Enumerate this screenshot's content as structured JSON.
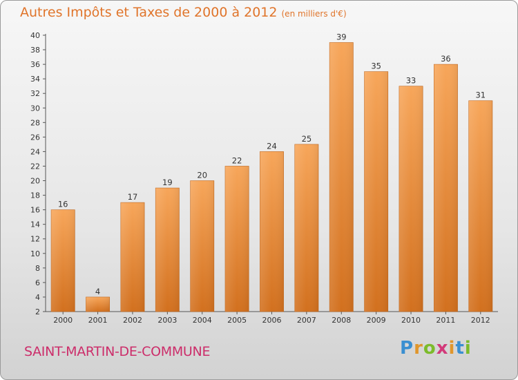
{
  "header": {
    "title": "Autres Impôts et Taxes de 2000 à 2012",
    "subtitle": "(en milliers d'€)"
  },
  "footer": {
    "commune": "SAINT-MARTIN-DE-COMMUNE",
    "logo_letters": [
      "P",
      "r",
      "o",
      "x",
      "i",
      "t",
      "i"
    ]
  },
  "colors": {
    "bar_light": "#f7a65a",
    "bar_dark": "#d2701e",
    "title": "#e0742a",
    "commune": "#cc2d6a"
  },
  "chart_data": {
    "type": "bar",
    "title": "Autres Impôts et Taxes de 2000 à 2012",
    "subtitle": "(en milliers d'€)",
    "xlabel": "",
    "ylabel": "",
    "categories": [
      "2000",
      "2001",
      "2002",
      "2003",
      "2004",
      "2005",
      "2006",
      "2007",
      "2008",
      "2009",
      "2010",
      "2011",
      "2012"
    ],
    "values": [
      16,
      4,
      17,
      19,
      20,
      22,
      24,
      25,
      39,
      35,
      33,
      36,
      31
    ],
    "ylim": [
      2,
      40
    ],
    "yticks": [
      2,
      4,
      6,
      8,
      10,
      12,
      14,
      16,
      18,
      20,
      22,
      24,
      26,
      28,
      30,
      32,
      34,
      36,
      38,
      40
    ],
    "grid": false,
    "legend": "none"
  }
}
